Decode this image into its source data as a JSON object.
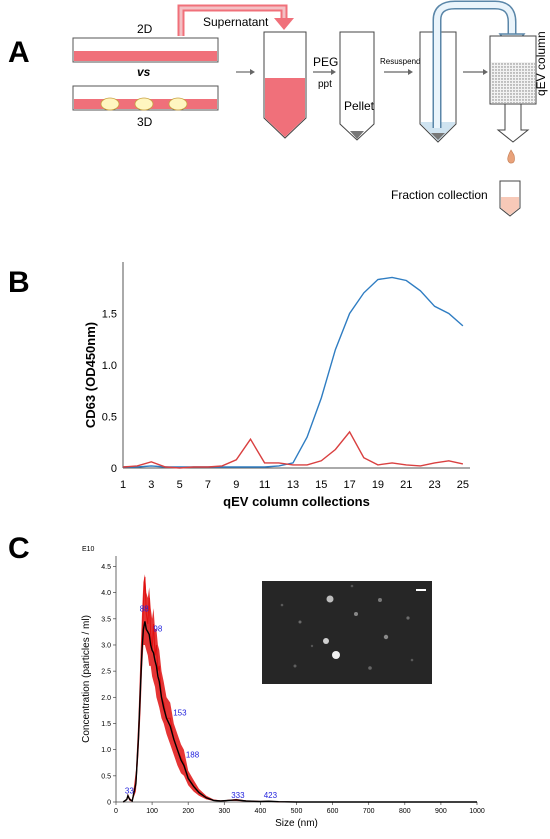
{
  "panel_a": {
    "letter": "A",
    "label_2d": "2D",
    "label_vs": "vs",
    "label_3d": "3D",
    "supernatant": "Supernatant",
    "peg": "PEG",
    "ppt": "ppt",
    "pellet": "Pellet",
    "resuspend": "Resuspend",
    "qev_column": "qEV column",
    "fraction_collection": "Fraction collection",
    "colors": {
      "media": "#f0707a",
      "fraction": "#f7c9b8",
      "drop": "#e9a27a",
      "tube_arrow": "#a8c8e0"
    }
  },
  "panel_b": {
    "letter": "B"
  },
  "panel_c": {
    "letter": "C"
  },
  "chart_data": [
    {
      "type": "line",
      "panel": "B",
      "xlabel": "qEV column collections",
      "ylabel": "CD63 (OD450nm)",
      "x_tick_labels": [
        "1",
        "3",
        "5",
        "7",
        "9",
        "11",
        "13",
        "15",
        "17",
        "19",
        "21",
        "23",
        "25"
      ],
      "y_tick_labels": [
        "0",
        "0.5",
        "1.0",
        "1.5"
      ],
      "ylim": [
        0,
        2.0
      ],
      "xlim": [
        1,
        25.5
      ],
      "x": [
        1,
        2,
        3,
        4,
        5,
        6,
        7,
        8,
        9,
        10,
        11,
        12,
        13,
        14,
        15,
        16,
        17,
        18,
        19,
        20,
        21,
        22,
        23,
        24,
        25
      ],
      "series": [
        {
          "color": "#2f7dc2",
          "values": [
            0.01,
            0.01,
            0.02,
            0.01,
            0.01,
            0.01,
            0.01,
            0.01,
            0.01,
            0.01,
            0.01,
            0.02,
            0.05,
            0.3,
            0.68,
            1.15,
            1.5,
            1.7,
            1.83,
            1.85,
            1.82,
            1.72,
            1.57,
            1.5,
            1.38
          ]
        },
        {
          "color": "#d94040",
          "values": [
            0.01,
            0.02,
            0.06,
            0.01,
            0.0,
            0.01,
            0.01,
            0.02,
            0.08,
            0.28,
            0.05,
            0.05,
            0.03,
            0.03,
            0.07,
            0.18,
            0.35,
            0.1,
            0.03,
            0.05,
            0.03,
            0.02,
            0.05,
            0.07,
            0.04
          ]
        }
      ]
    },
    {
      "type": "line",
      "panel": "C",
      "xlabel": "Size (nm)",
      "ylabel": "Concentration (particles / ml)",
      "y_multiplier_label": "E10",
      "x_tick_labels": [
        "0",
        "100",
        "200",
        "300",
        "400",
        "500",
        "600",
        "700",
        "800",
        "900",
        "1000"
      ],
      "y_tick_labels": [
        "0",
        "0.5",
        "1.0",
        "1.5",
        "2.0",
        "2.5",
        "3.0",
        "3.5",
        "4.0",
        "4.5"
      ],
      "xlim": [
        0,
        1000
      ],
      "ylim": [
        0,
        4.7
      ],
      "peak_labels": [
        "33",
        "88",
        "98",
        "153",
        "188",
        "333",
        "423"
      ],
      "series": [
        {
          "color": "#e01010",
          "x": [
            20,
            30,
            33,
            38,
            45,
            55,
            62,
            68,
            72,
            76,
            80,
            84,
            88,
            92,
            96,
            100,
            104,
            108,
            112,
            116,
            120,
            126,
            132,
            140,
            150,
            160,
            170,
            180,
            188,
            200,
            215,
            230,
            250,
            270,
            290,
            310,
            333,
            360,
            400,
            423,
            450,
            500,
            600,
            700,
            800,
            900,
            1000
          ],
          "y": [
            0,
            0.05,
            0.12,
            0.05,
            0.02,
            0.4,
            1.2,
            2.2,
            3.0,
            3.8,
            4.3,
            3.6,
            3.4,
            3.9,
            3.2,
            2.9,
            3.4,
            2.8,
            3.0,
            2.5,
            2.6,
            2.0,
            1.9,
            1.6,
            1.6,
            1.2,
            1.0,
            0.85,
            0.75,
            0.45,
            0.3,
            0.18,
            0.08,
            0.03,
            0.02,
            0.03,
            0.04,
            0.02,
            0.01,
            0.015,
            0.005,
            0,
            0,
            0,
            0,
            0,
            0
          ],
          "y_lower": [
            0,
            0.03,
            0.08,
            0.02,
            0.01,
            0.2,
            0.9,
            1.7,
            2.5,
            3.0,
            3.0,
            2.9,
            2.8,
            2.6,
            2.6,
            2.4,
            2.3,
            2.2,
            2.0,
            1.9,
            1.8,
            1.6,
            1.5,
            1.3,
            1.1,
            0.9,
            0.7,
            0.55,
            0.5,
            0.32,
            0.2,
            0.12,
            0.05,
            0.02,
            0.01,
            0.02,
            0.02,
            0.01,
            0.0,
            0.01,
            0.0,
            0,
            0,
            0,
            0,
            0,
            0
          ],
          "y_upper": [
            0,
            0.07,
            0.16,
            0.08,
            0.03,
            0.6,
            1.6,
            2.8,
            3.6,
            4.2,
            4.35,
            4.0,
            3.9,
            4.1,
            3.7,
            3.5,
            3.7,
            3.3,
            3.3,
            3.0,
            2.9,
            2.5,
            2.3,
            2.0,
            1.9,
            1.5,
            1.3,
            1.1,
            1.0,
            0.6,
            0.42,
            0.25,
            0.12,
            0.05,
            0.03,
            0.04,
            0.06,
            0.03,
            0.02,
            0.02,
            0.01,
            0,
            0,
            0,
            0,
            0,
            0
          ]
        },
        {
          "color": "#000000",
          "x": [
            20,
            30,
            33,
            38,
            45,
            55,
            62,
            68,
            72,
            76,
            80,
            84,
            88,
            92,
            96,
            100,
            104,
            108,
            112,
            116,
            120,
            126,
            132,
            140,
            150,
            160,
            170,
            180,
            188,
            200,
            215,
            230,
            250,
            270,
            290,
            310,
            333,
            360,
            400,
            423,
            450,
            500,
            600,
            700,
            800,
            900,
            1000
          ],
          "y": [
            0,
            0.05,
            0.12,
            0.05,
            0.02,
            0.35,
            1.2,
            2.2,
            2.9,
            3.3,
            3.45,
            3.3,
            3.25,
            3.2,
            3.0,
            2.9,
            2.85,
            2.7,
            2.6,
            2.4,
            2.3,
            2.0,
            1.8,
            1.6,
            1.45,
            1.2,
            1.0,
            0.8,
            0.7,
            0.45,
            0.3,
            0.18,
            0.08,
            0.03,
            0.02,
            0.03,
            0.04,
            0.02,
            0.01,
            0.015,
            0.005,
            0,
            0,
            0,
            0,
            0,
            0
          ]
        }
      ]
    }
  ]
}
